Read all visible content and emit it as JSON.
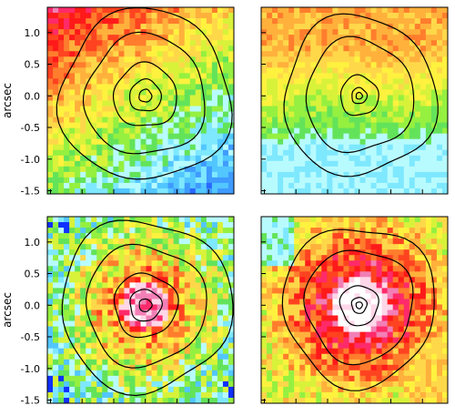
{
  "figure": {
    "axis_label": "arcsec",
    "y_ticks": [
      "1.0",
      "0.5",
      "0.0",
      "-0.5",
      "-1.0",
      "-1.5"
    ],
    "tick_values": [
      1.0,
      0.5,
      0.0,
      -0.5,
      -1.0,
      -1.5
    ],
    "range": [
      -1.55,
      1.4
    ],
    "colors": {
      "palette": [
        "#1030ff",
        "#2a66ff",
        "#3f9bff",
        "#52c6ff",
        "#7ee8ff",
        "#b8fbff",
        "#63e35a",
        "#95f040",
        "#d8f23a",
        "#fff23f",
        "#ffd84a",
        "#ffb13c",
        "#ff7d2d",
        "#ff4320",
        "#ff1a1a",
        "#ff2a6a",
        "#f27fb5",
        "#ffd7e8",
        "#ffffff"
      ],
      "contour": "#000000",
      "frame": "#000000",
      "background": "#ffffff"
    },
    "panels": [
      {
        "name": "top-left",
        "pattern": "rotation",
        "contours": [
          0.1,
          0.25,
          0.5,
          0.95,
          1.35
        ],
        "center": [
          0.0,
          0.0
        ]
      },
      {
        "name": "top-right",
        "pattern": "bands",
        "contours": [
          0.05,
          0.12,
          0.3,
          0.85,
          1.2
        ],
        "center": [
          0.0,
          0.0
        ]
      },
      {
        "name": "bottom-left",
        "pattern": "dispersion-low",
        "contours": [
          0.1,
          0.25,
          0.5,
          0.95,
          1.35
        ],
        "center": [
          0.0,
          0.0
        ]
      },
      {
        "name": "bottom-right",
        "pattern": "dispersion-high",
        "contours": [
          0.05,
          0.12,
          0.3,
          0.85,
          1.2
        ],
        "center": [
          0.0,
          0.0
        ]
      }
    ]
  }
}
